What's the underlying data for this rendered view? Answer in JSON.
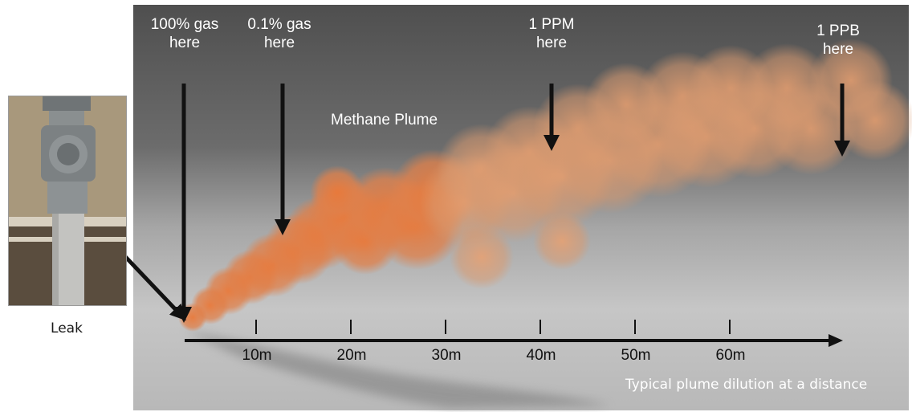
{
  "annotations": [
    {
      "id": "100pct",
      "line1": "100% gas",
      "line2": "here"
    },
    {
      "id": "0p1pct",
      "line1": "0.1% gas",
      "line2": "here"
    },
    {
      "id": "1ppm",
      "line1": "1 PPM",
      "line2": "here"
    },
    {
      "id": "1ppb",
      "line1": "1 PPB",
      "line2": "here"
    }
  ],
  "plume_label": "Methane Plume",
  "leak_label": "Leak",
  "distance_caption": "Typical plume dilution at a distance",
  "distance_ticks": [
    "10m",
    "20m",
    "30m",
    "40m",
    "50m",
    "60m"
  ],
  "colors": {
    "plume": "#e8833f",
    "sky_dark": "#5a5a5a",
    "ground": "#c9c9c9",
    "arrow": "#111111"
  }
}
